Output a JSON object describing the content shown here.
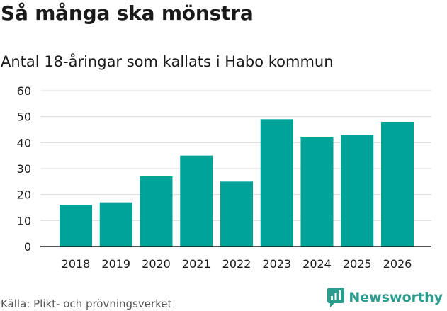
{
  "title": "Så många ska mönstra",
  "subtitle": "Antal 18-åringar som kallats i Habo kommun",
  "source": "Källa: Plikt- och prövningsverket",
  "brand": {
    "name": "Newsworthy",
    "icon": "newsworthy-logo-icon",
    "color": "#2a9d8f"
  },
  "chart_data": {
    "type": "bar",
    "title": "Så många ska mönstra",
    "subtitle": "Antal 18-åringar som kallats i Habo kommun",
    "xlabel": "",
    "ylabel": "",
    "categories": [
      "2018",
      "2019",
      "2020",
      "2021",
      "2022",
      "2023",
      "2024",
      "2025",
      "2026"
    ],
    "values": [
      16,
      17,
      27,
      35,
      25,
      49,
      42,
      43,
      48
    ],
    "ylim": [
      0,
      60
    ],
    "yticks": [
      0,
      10,
      20,
      30,
      40,
      50,
      60
    ],
    "ytick_labels": [
      "0",
      "10",
      "20",
      "30",
      "40",
      "50",
      "60"
    ],
    "grid": true,
    "bar_color": "#00a398"
  }
}
